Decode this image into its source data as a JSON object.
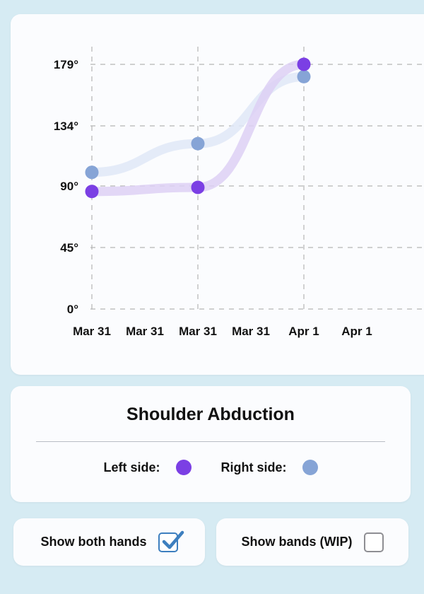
{
  "chart_data": {
    "type": "line",
    "title": "",
    "xlabel": "",
    "ylabel": "",
    "x_tick_labels": [
      "Mar 31",
      "Mar 31",
      "Mar 31",
      "Mar 31",
      "Apr 1",
      "Apr 1"
    ],
    "y_tick_labels": [
      "0°",
      "45°",
      "90°",
      "134°",
      "179°"
    ],
    "y_ticks": [
      0,
      45,
      90,
      134,
      179
    ],
    "ylim": [
      0,
      179
    ],
    "grid": true,
    "series": [
      {
        "name": "Left side",
        "color": "#7b3fe4",
        "values": [
          {
            "x": 0,
            "y": 86
          },
          {
            "x": 2,
            "y": 89
          },
          {
            "x": 4,
            "y": 179
          }
        ]
      },
      {
        "name": "Right side",
        "color": "#86a4d6",
        "values": [
          {
            "x": 0,
            "y": 100
          },
          {
            "x": 2,
            "y": 121
          },
          {
            "x": 4,
            "y": 170
          }
        ]
      }
    ]
  },
  "legend": {
    "title": "Shoulder Abduction",
    "left_label": "Left side:",
    "right_label": "Right side:",
    "left_color": "#7b3fe4",
    "right_color": "#86a4d6"
  },
  "toggles": {
    "show_both_hands_label": "Show both hands",
    "show_both_hands_checked": true,
    "show_bands_label": "Show bands (WIP)",
    "show_bands_checked": false
  }
}
